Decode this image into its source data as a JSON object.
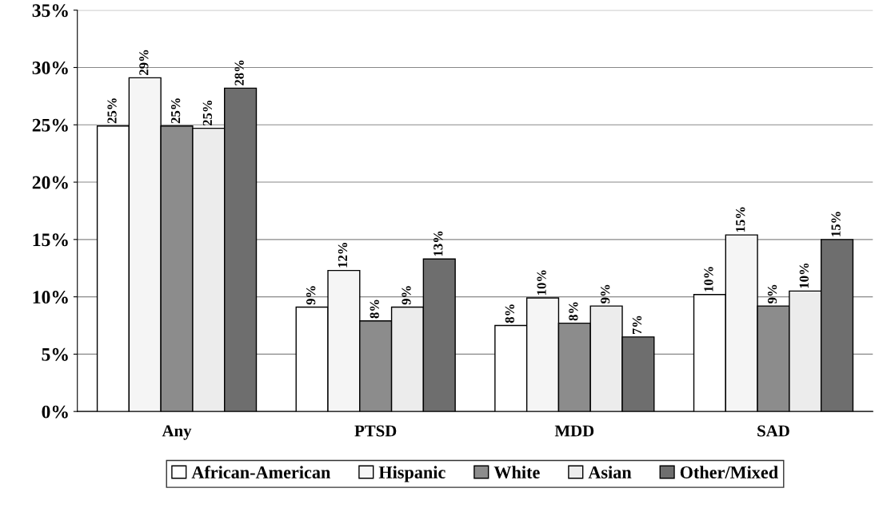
{
  "chart_data": {
    "type": "bar",
    "categories": [
      "Any",
      "PTSD",
      "MDD",
      "SAD"
    ],
    "series": [
      {
        "name": "African-American",
        "color": "#ffffff",
        "values": [
          24.9,
          9.1,
          7.5,
          10.2
        ],
        "value_labels": [
          "25%",
          "9%",
          "8%",
          "10%"
        ]
      },
      {
        "name": "Hispanic",
        "color": "#f5f5f5",
        "values": [
          29.1,
          12.3,
          9.9,
          15.4
        ],
        "value_labels": [
          "29%",
          "12%",
          "10%",
          "15%"
        ]
      },
      {
        "name": "White",
        "color": "#8c8c8c",
        "values": [
          24.9,
          7.9,
          7.7,
          9.2
        ],
        "value_labels": [
          "25%",
          "8%",
          "8%",
          "9%"
        ]
      },
      {
        "name": "Asian",
        "color": "#ececec",
        "values": [
          24.7,
          9.1,
          9.2,
          10.5
        ],
        "value_labels": [
          "25%",
          "9%",
          "9%",
          "10%"
        ]
      },
      {
        "name": "Other/Mixed",
        "color": "#6e6e6e",
        "values": [
          28.2,
          13.3,
          6.5,
          15.0
        ],
        "value_labels": [
          "28%",
          "13%",
          "7%",
          "15%"
        ]
      }
    ],
    "ylim": [
      0,
      35
    ],
    "yticks": [
      {
        "value": 0,
        "label": "0%"
      },
      {
        "value": 5,
        "label": "5%"
      },
      {
        "value": 10,
        "label": "10%"
      },
      {
        "value": 15,
        "label": "15%"
      },
      {
        "value": 20,
        "label": "20%"
      },
      {
        "value": 25,
        "label": "25%"
      },
      {
        "value": 30,
        "label": "30%"
      },
      {
        "value": 35,
        "label": "35%"
      }
    ],
    "grid": "y",
    "legend": "bottom"
  }
}
